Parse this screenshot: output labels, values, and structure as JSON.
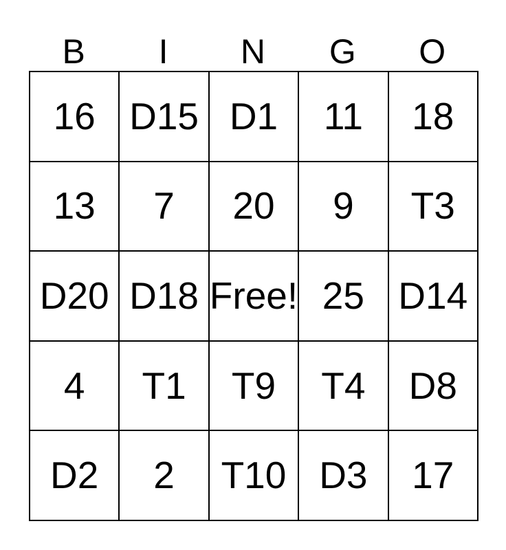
{
  "header": {
    "letters": [
      "B",
      "I",
      "N",
      "G",
      "O"
    ]
  },
  "card": {
    "rows": [
      [
        "16",
        "D15",
        "D1",
        "11",
        "18"
      ],
      [
        "13",
        "7",
        "20",
        "9",
        "T3"
      ],
      [
        "D20",
        "D18",
        "Free!",
        "25",
        "D14"
      ],
      [
        "4",
        "T1",
        "T9",
        "T4",
        "D8"
      ],
      [
        "D2",
        "2",
        "T10",
        "D3",
        "17"
      ]
    ],
    "free_cell_label": "Free!",
    "free_cell_position": {
      "row": 2,
      "col": 2
    }
  },
  "colors": {
    "background": "#ffffff",
    "text": "#000000",
    "grid_line": "#000000"
  }
}
